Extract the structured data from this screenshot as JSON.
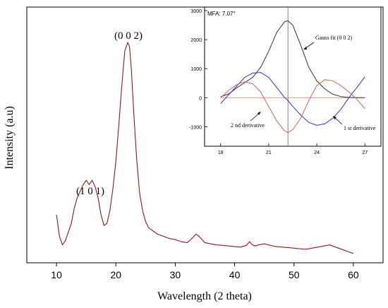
{
  "chart_data": [
    {
      "type": "line",
      "xlabel": "Wavelength (2 theta)",
      "ylabel": "Intensity (a.u)",
      "xlim": [
        5,
        65
      ],
      "ylim": [
        0,
        1
      ],
      "x_ticks": [
        10,
        20,
        30,
        40,
        50,
        60
      ],
      "y_ticks_shown": false,
      "grid": false,
      "series": [
        {
          "color": "#8b1a1a",
          "x": [
            10.0,
            10.5,
            11.0,
            11.5,
            12.0,
            12.5,
            13.0,
            13.5,
            14.0,
            14.5,
            15.0,
            15.5,
            16.0,
            16.5,
            17.0,
            17.5,
            18.0,
            18.5,
            19.0,
            19.5,
            20.0,
            20.5,
            21.0,
            21.5,
            22.0,
            22.3,
            22.6,
            23.0,
            23.5,
            24.0,
            24.5,
            25.0,
            25.5,
            26.0,
            26.5,
            27.0,
            28.0,
            29.0,
            30.0,
            31.0,
            32.0,
            33.0,
            33.5,
            34.0,
            34.5,
            35.0,
            36.0,
            37.0,
            38.0,
            39.0,
            40.0,
            41.0,
            42.0,
            42.5,
            43.0,
            43.5,
            44.0,
            45.0,
            46.0,
            47.0,
            48.0,
            49.0,
            50.0,
            51.0,
            52.0,
            53.0,
            54.0,
            55.0,
            56.0,
            57.0,
            58.0,
            59.0,
            60.0
          ],
          "y": [
            0.2,
            0.1,
            0.06,
            0.08,
            0.12,
            0.16,
            0.23,
            0.28,
            0.31,
            0.34,
            0.36,
            0.34,
            0.36,
            0.33,
            0.28,
            0.2,
            0.15,
            0.16,
            0.22,
            0.32,
            0.45,
            0.62,
            0.8,
            0.96,
            1.0,
            0.98,
            0.88,
            0.68,
            0.46,
            0.3,
            0.22,
            0.17,
            0.14,
            0.13,
            0.12,
            0.11,
            0.1,
            0.09,
            0.085,
            0.075,
            0.07,
            0.095,
            0.11,
            0.1,
            0.085,
            0.07,
            0.065,
            0.06,
            0.058,
            0.055,
            0.052,
            0.05,
            0.058,
            0.075,
            0.06,
            0.055,
            0.06,
            0.065,
            0.058,
            0.052,
            0.05,
            0.048,
            0.045,
            0.042,
            0.04,
            0.045,
            0.05,
            0.055,
            0.06,
            0.05,
            0.04,
            0.03,
            0.02
          ]
        }
      ],
      "annotations": [
        {
          "text": "(1 0 1)",
          "x": 16,
          "y": 0.36
        },
        {
          "text": "(0 0 2)",
          "x": 22.3,
          "y": 1.0
        }
      ]
    },
    {
      "type": "line",
      "title": "MFA: 7.07°",
      "xlim": [
        17,
        28
      ],
      "ylim": [
        -1500,
        3000
      ],
      "x_ticks": [
        18,
        21,
        24,
        27
      ],
      "y_ticks": [
        -1000,
        0,
        1000,
        2000,
        3000
      ],
      "vertical_line_x": 22.2,
      "horizontal_line_y": 0,
      "series": [
        {
          "name": "Gauss fit (0 0 2)",
          "color": "#333333",
          "x": [
            18,
            18.5,
            19,
            19.5,
            20,
            20.5,
            21,
            21.5,
            22,
            22.2,
            22.5,
            23,
            23.5,
            24,
            24.5,
            25,
            25.5,
            26,
            26.5,
            27
          ],
          "y": [
            30,
            130,
            340,
            520,
            700,
            1050,
            1600,
            2250,
            2620,
            2650,
            2500,
            1800,
            1050,
            580,
            300,
            120,
            40,
            10,
            0,
            0
          ]
        },
        {
          "name": "1 st derivative",
          "color": "#3333cc",
          "x": [
            18,
            18.5,
            19,
            19.5,
            20,
            20.5,
            21,
            21.5,
            22,
            22.2,
            22.5,
            23,
            23.5,
            24,
            24.5,
            25,
            25.5,
            26,
            26.5,
            27
          ],
          "y": [
            -200,
            100,
            400,
            700,
            850,
            870,
            700,
            350,
            0,
            -100,
            -300,
            -600,
            -850,
            -950,
            -900,
            -700,
            -400,
            0,
            350,
            720
          ]
        },
        {
          "name": "2 nd derivative",
          "color": "#cc6655",
          "x": [
            18,
            18.5,
            19,
            19.5,
            20,
            20.5,
            21,
            21.5,
            22,
            22.2,
            22.5,
            23,
            23.5,
            24,
            24.5,
            25,
            25.5,
            26,
            26.5,
            27
          ],
          "y": [
            0,
            250,
            450,
            550,
            480,
            200,
            -300,
            -800,
            -1150,
            -1200,
            -1100,
            -700,
            -100,
            420,
            620,
            580,
            420,
            200,
            -50,
            -380
          ]
        }
      ]
    }
  ]
}
